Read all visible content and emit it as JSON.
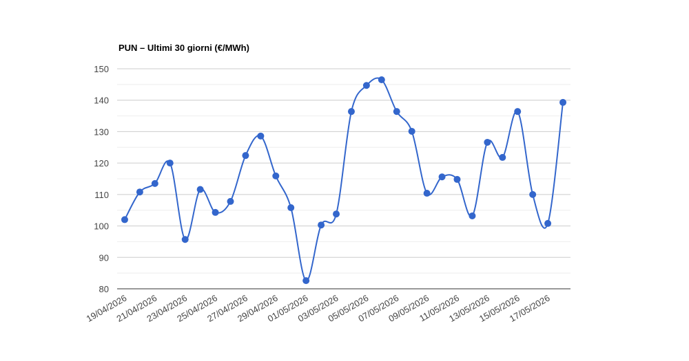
{
  "chart_data": {
    "type": "line",
    "title": "PUN – Ultimi 30 giorni (€/MWh)",
    "categories": [
      "19/04/2026",
      null,
      "21/04/2026",
      null,
      "23/04/2026",
      null,
      "25/04/2026",
      null,
      "27/04/2026",
      null,
      "29/04/2026",
      null,
      "01/05/2026",
      null,
      "03/05/2026",
      null,
      "05/05/2026",
      null,
      "07/05/2026",
      null,
      "09/05/2026",
      null,
      "11/05/2026",
      null,
      "13/05/2026",
      null,
      "15/05/2026",
      null,
      "17/05/2026",
      null
    ],
    "values": [
      102,
      110.8,
      113.5,
      120,
      95.7,
      111.6,
      104.3,
      107.8,
      122.4,
      128.6,
      115.9,
      105.8,
      82.6,
      100.3,
      103.8,
      136.4,
      144.7,
      146.5,
      136.4,
      130.1,
      110.4,
      115.6,
      114.8,
      103.2,
      126.6,
      121.8,
      136.4,
      110,
      100.8,
      139.3
    ],
    "color": "#3366cc",
    "ylim": [
      80,
      150
    ],
    "yticks": [
      80,
      90,
      100,
      110,
      120,
      130,
      140,
      150
    ],
    "grid": true
  }
}
